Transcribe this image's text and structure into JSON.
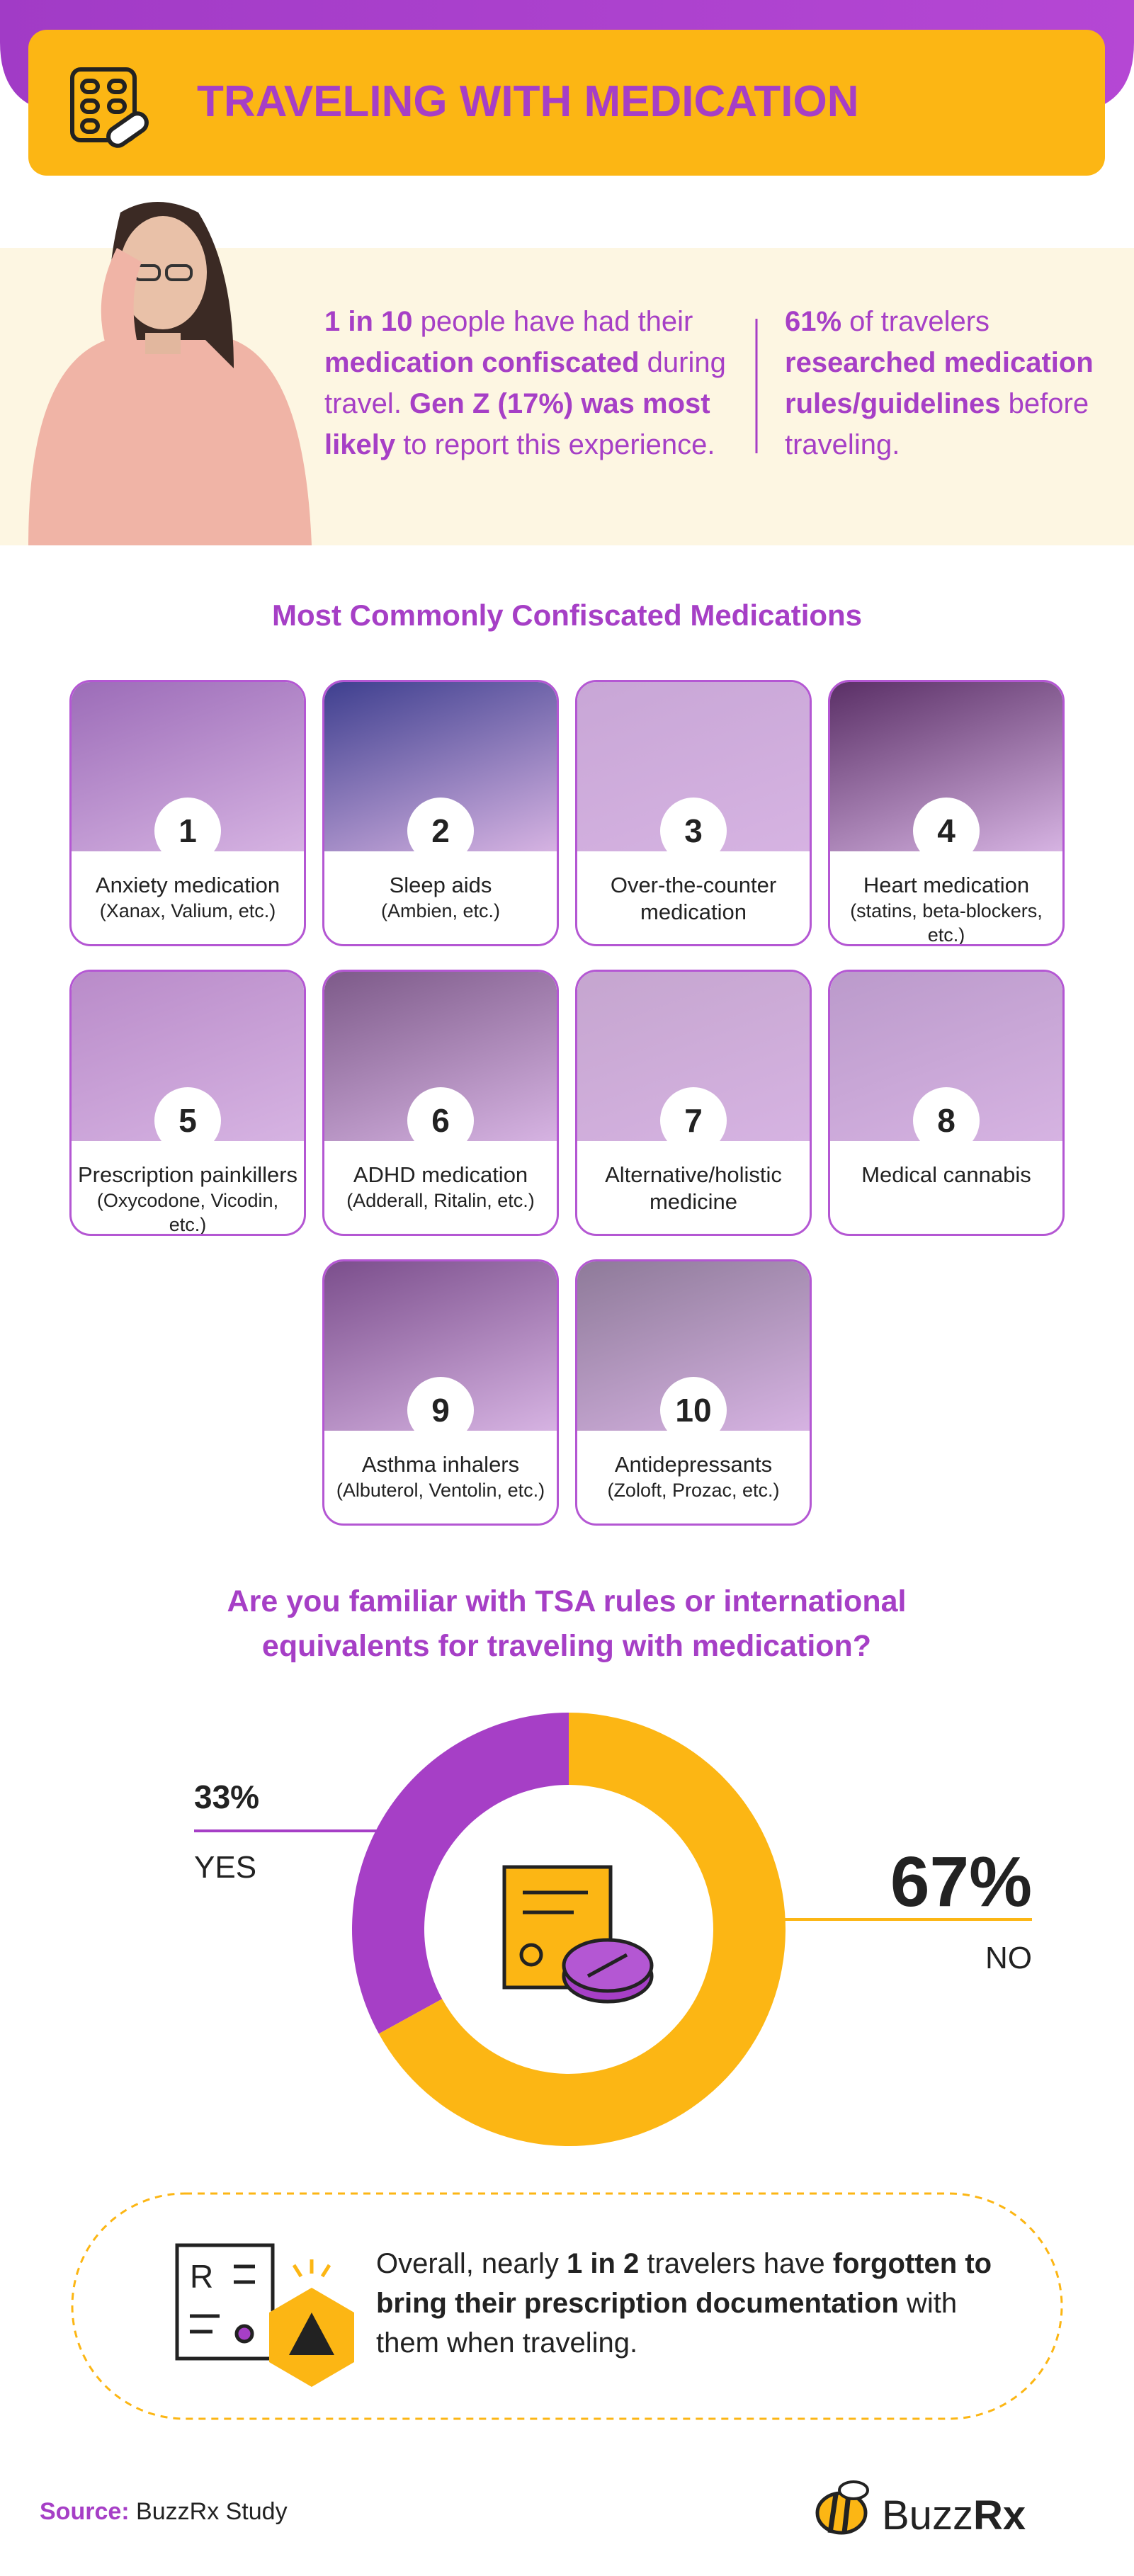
{
  "header": {
    "title": "TRAVELING WITH MEDICATION"
  },
  "stats": [
    {
      "segments": [
        {
          "text": "1 in 10",
          "bold": true
        },
        {
          "text": " people have had their ",
          "bold": false
        },
        {
          "text": "medication confiscated",
          "bold": true
        },
        {
          "text": " during travel. ",
          "bold": false
        },
        {
          "text": "Gen Z (17%) was most likely",
          "bold": true
        },
        {
          "text": " to report this experience.",
          "bold": false
        }
      ]
    },
    {
      "segments": [
        {
          "text": "61%",
          "bold": true
        },
        {
          "text": " of travelers ",
          "bold": false
        },
        {
          "text": "researched medication rules/guidelines",
          "bold": true
        },
        {
          "text": " before traveling.",
          "bold": false
        }
      ]
    }
  ],
  "medications": {
    "title": "Most Commonly Confiscated Medications",
    "items": [
      {
        "number": 1,
        "label": "Anxiety medication",
        "detail": "(Xanax, Valium, etc.)"
      },
      {
        "number": 2,
        "label": "Sleep aids",
        "detail": "(Ambien, etc.)"
      },
      {
        "number": 3,
        "label": "Over-the-counter medication",
        "detail": null
      },
      {
        "number": 4,
        "label": "Heart medication",
        "detail": "(statins, beta-blockers, etc.)"
      },
      {
        "number": 5,
        "label": "Prescription painkillers",
        "detail": "(Oxycodone, Vicodin, etc.)"
      },
      {
        "number": 6,
        "label": "ADHD medication",
        "detail": "(Adderall, Ritalin, etc.)"
      },
      {
        "number": 7,
        "label": "Alternative/holistic medicine",
        "detail": null
      },
      {
        "number": 8,
        "label": "Medical cannabis",
        "detail": null
      },
      {
        "number": 9,
        "label": "Asthma inhalers",
        "detail": "(Albuterol, Ventolin, etc.)"
      },
      {
        "number": 10,
        "label": "Antidepressants",
        "detail": "(Zoloft, Prozac, etc.)"
      }
    ]
  },
  "chart_data": {
    "type": "donut",
    "title": "Are you familiar with TSA rules or international equivalents for traveling with medication?",
    "categories": [
      "YES",
      "NO"
    ],
    "values": [
      33,
      67
    ],
    "value_labels": [
      "33%",
      "67%"
    ],
    "colors": [
      "#a63fc6",
      "#fcb614"
    ]
  },
  "callout": {
    "segments": [
      {
        "text": "Overall, nearly ",
        "bold": false
      },
      {
        "text": "1 in 2",
        "bold": true
      },
      {
        "text": " travelers have ",
        "bold": false
      },
      {
        "text": "forgotten to bring their prescription documentation",
        "bold": true
      },
      {
        "text": " with them when traveling.",
        "bold": false
      }
    ]
  },
  "footer": {
    "source_label": "Source:",
    "source": "BuzzRx Study",
    "logo": [
      {
        "text": "Buzz",
        "bold": false
      },
      {
        "text": "Rx",
        "bold": true
      }
    ]
  }
}
